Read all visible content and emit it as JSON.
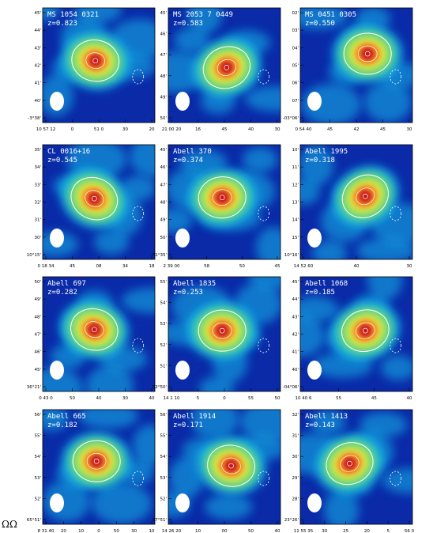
{
  "colors": {
    "background": "#ffffff",
    "map_low": "#0a2aa8",
    "map_mid": "#16b7e8",
    "map_green": "#6fe06b",
    "map_yellow": "#f4e33c",
    "map_orange": "#f08a24",
    "map_peak": "#c8161d",
    "contour": "#ffffff",
    "label": "#ffffff"
  },
  "panels": [
    {
      "name": "MS 1054 0321",
      "z": "z=0.823",
      "xticks": [
        "10 57 12",
        "0",
        "51 0",
        "30",
        "20"
      ],
      "yticks": [
        "45'",
        "44'",
        "43'",
        "42'",
        "41'",
        "40'",
        "-3°38'"
      ]
    },
    {
      "name": "MS 2053 7 0449",
      "z": "z=0.583",
      "xticks": [
        "21 00 20",
        "16",
        "45",
        "40",
        "30"
      ],
      "yticks": [
        "45'",
        "46'",
        "47'",
        "48'",
        "49'",
        "50'"
      ]
    },
    {
      "name": "MS 0451 0305",
      "z": "z=0.550",
      "xticks": [
        "0 54 40",
        "45",
        "42",
        "45",
        "30"
      ],
      "yticks": [
        "02'",
        "03'",
        "04'",
        "05'",
        "06'",
        "07'",
        "-03°06'"
      ]
    },
    {
      "name": "CL 0016+16",
      "z": "z=0.545",
      "xticks": [
        "0 18 34",
        "45",
        "08",
        "34",
        "18"
      ],
      "yticks": [
        "35'",
        "34'",
        "33'",
        "32'",
        "31'",
        "30'",
        "10°15'"
      ]
    },
    {
      "name": "Abell 370",
      "z": "z=0.374",
      "xticks": [
        "2 39 00",
        "58",
        "50",
        "45"
      ],
      "yticks": [
        "45'",
        "46'",
        "47'",
        "48'",
        "49'",
        "50'",
        "-01°35'"
      ]
    },
    {
      "name": "Abell 1995",
      "z": "z=0.318",
      "xticks": [
        "14 52 60",
        "40",
        "30"
      ],
      "yticks": [
        "10'",
        "11'",
        "12'",
        "13'",
        "14'",
        "15'",
        "10°16'"
      ]
    },
    {
      "name": "Abell 697",
      "z": "z=0.282",
      "xticks": [
        "0 43 0",
        "50",
        "40",
        "30",
        "40"
      ],
      "yticks": [
        "50'",
        "49'",
        "48'",
        "47'",
        "46'",
        "45'",
        "36°21'"
      ]
    },
    {
      "name": "Abell 1835",
      "z": "z=0.253",
      "xticks": [
        "14 1 10",
        "5",
        "0",
        "55",
        "50"
      ],
      "yticks": [
        "55'",
        "54'",
        "53'",
        "52'",
        "51'",
        "02°50'"
      ]
    },
    {
      "name": "Abell 1068",
      "z": "z=0.185",
      "xticks": [
        "10 40 6",
        "55",
        "45",
        "40"
      ],
      "yticks": [
        "45'",
        "44'",
        "43'",
        "42'",
        "41'",
        "40'",
        "-04°06'"
      ]
    },
    {
      "name": "Abell 665",
      "z": "z=0.182",
      "xticks": [
        "8 31 40",
        "20",
        "10",
        "0",
        "50",
        "30",
        "10"
      ],
      "yticks": [
        "56'",
        "55'",
        "54'",
        "53'",
        "52'",
        "65°51'"
      ]
    },
    {
      "name": "Abell 1914",
      "z": "z=0.171",
      "xticks": [
        "14 26 20",
        "10",
        "00",
        "50",
        "40"
      ],
      "yticks": [
        "56'",
        "55'",
        "54'",
        "53'",
        "52'",
        "37°51'"
      ]
    },
    {
      "name": "Abell 1413",
      "z": "z=0.143",
      "xticks": [
        "11 55 35",
        "30",
        "25",
        "20",
        "5",
        "56 0"
      ],
      "yticks": [
        "32'",
        "31'",
        "30'",
        "29'",
        "28'",
        "23°26'"
      ]
    }
  ],
  "footer": "ΩΩ"
}
